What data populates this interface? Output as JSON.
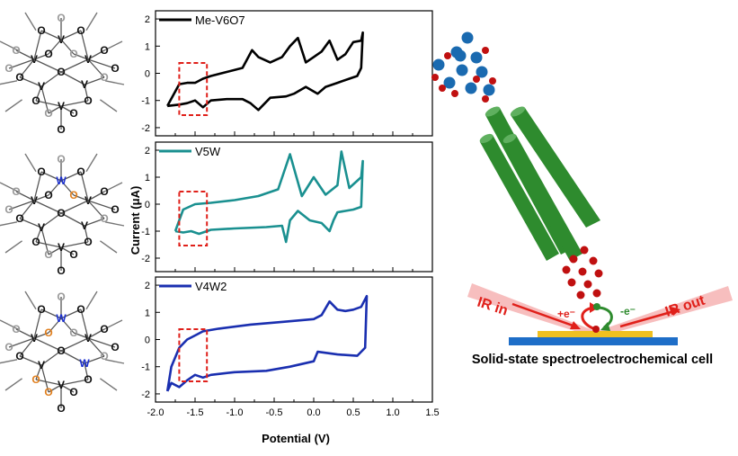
{
  "chart_data": [
    {
      "type": "line",
      "series": [
        {
          "name": "Me-V6O7",
          "color": "#000000",
          "x": [
            -1.85,
            -1.7,
            -1.6,
            -1.5,
            -1.4,
            -1.3,
            -1.1,
            -0.9,
            -0.8,
            -0.7,
            -0.55,
            -0.35,
            -0.25,
            -0.1,
            0.05,
            0.15,
            0.3,
            0.45,
            0.55,
            0.6,
            0.62,
            0.6,
            0.5,
            0.4,
            0.3,
            0.2,
            0.1,
            0.0,
            -0.1,
            -0.2,
            -0.3,
            -0.4,
            -0.55,
            -0.7,
            -0.78,
            -0.9,
            -1.1,
            -1.3,
            -1.4,
            -1.5,
            -1.6,
            -1.7,
            -1.85
          ],
          "y": [
            -1.2,
            -1.15,
            -1.1,
            -1.0,
            -1.25,
            -1.0,
            -0.95,
            -0.95,
            -1.1,
            -1.35,
            -0.9,
            -0.85,
            -0.75,
            -0.5,
            -0.75,
            -0.5,
            -0.35,
            -0.2,
            -0.1,
            0.2,
            1.5,
            1.2,
            1.15,
            0.7,
            0.5,
            1.2,
            0.8,
            0.6,
            0.4,
            1.3,
            1.0,
            0.6,
            0.4,
            0.6,
            0.85,
            0.2,
            0.05,
            -0.1,
            -0.2,
            -0.35,
            -0.35,
            -0.4,
            -1.2
          ]
        }
      ],
      "ylim": [
        -2.3,
        2.3
      ],
      "yticks": [
        "2",
        "1",
        "0",
        "-1",
        "-2"
      ]
    },
    {
      "type": "line",
      "series": [
        {
          "name": "V5W",
          "color": "#1a9090",
          "x": [
            -1.75,
            -1.65,
            -1.55,
            -1.45,
            -1.3,
            -1.0,
            -0.6,
            -0.4,
            -0.35,
            -0.3,
            -0.2,
            -0.05,
            0.1,
            0.2,
            0.25,
            0.3,
            0.5,
            0.6,
            0.62,
            0.6,
            0.45,
            0.35,
            0.3,
            0.15,
            0.0,
            -0.15,
            -0.3,
            -0.45,
            -0.7,
            -1.0,
            -1.3,
            -1.5,
            -1.65,
            -1.75
          ],
          "y": [
            -1.0,
            -1.05,
            -1.0,
            -1.1,
            -0.95,
            -0.9,
            -0.85,
            -0.8,
            -1.4,
            -0.6,
            -0.25,
            -0.6,
            -0.7,
            -1.0,
            -0.6,
            -0.3,
            -0.2,
            -0.1,
            1.6,
            1.0,
            0.6,
            1.95,
            0.7,
            0.35,
            1.0,
            0.3,
            1.85,
            0.55,
            0.3,
            0.15,
            0.05,
            0.0,
            -0.2,
            -1.0
          ]
        }
      ],
      "ylim": [
        -2.5,
        2.3
      ],
      "yticks": [
        "2",
        "1",
        "0",
        "-1",
        "-2"
      ]
    },
    {
      "type": "line",
      "series": [
        {
          "name": "V4W2",
          "color": "#1a2fb0",
          "x": [
            -1.85,
            -1.8,
            -1.7,
            -1.6,
            -1.5,
            -1.4,
            -1.3,
            -1.0,
            -0.6,
            -0.3,
            0.0,
            0.05,
            0.3,
            0.55,
            0.65,
            0.67,
            0.6,
            0.5,
            0.4,
            0.3,
            0.2,
            0.1,
            0.0,
            -0.4,
            -0.8,
            -1.2,
            -1.4,
            -1.5,
            -1.6,
            -1.7,
            -1.8,
            -1.85
          ],
          "y": [
            -1.9,
            -1.6,
            -1.75,
            -1.5,
            -1.3,
            -1.4,
            -1.3,
            -1.2,
            -1.15,
            -1.0,
            -0.8,
            -0.45,
            -0.55,
            -0.6,
            -0.3,
            1.6,
            1.2,
            1.1,
            1.05,
            1.1,
            1.4,
            0.9,
            0.75,
            0.65,
            0.55,
            0.4,
            0.3,
            0.15,
            0.0,
            -0.3,
            -1.0,
            -1.9
          ]
        }
      ],
      "xlim": [
        -2.0,
        1.5
      ],
      "ylim": [
        -2.3,
        2.3
      ],
      "xticks": [
        "-2.0",
        "-1.5",
        "-1.0",
        "-0.5",
        "0.0",
        "0.5",
        "1.0",
        "1.5"
      ],
      "yticks": [
        "2",
        "1",
        "0",
        "-1",
        "-2"
      ],
      "xlabel": "Potential (V)"
    }
  ],
  "ylabel": "Current (μA)",
  "molecules": {
    "atom_v": "V",
    "atom_o": "O",
    "atom_w": "W"
  },
  "cell": {
    "title": "Solid-state spectroelectrochemical cell",
    "ir_in": "IR in",
    "ir_out": "IR out",
    "e_plus": "+e⁻",
    "e_minus": "-e⁻"
  },
  "colors": {
    "highlight_box": "#e0201a",
    "tube": "#2e8b2e",
    "red_dot": "#c01010",
    "blue_dot": "#1a6ab0",
    "electrode": "#1e6ec8",
    "film": "#f0c020"
  }
}
